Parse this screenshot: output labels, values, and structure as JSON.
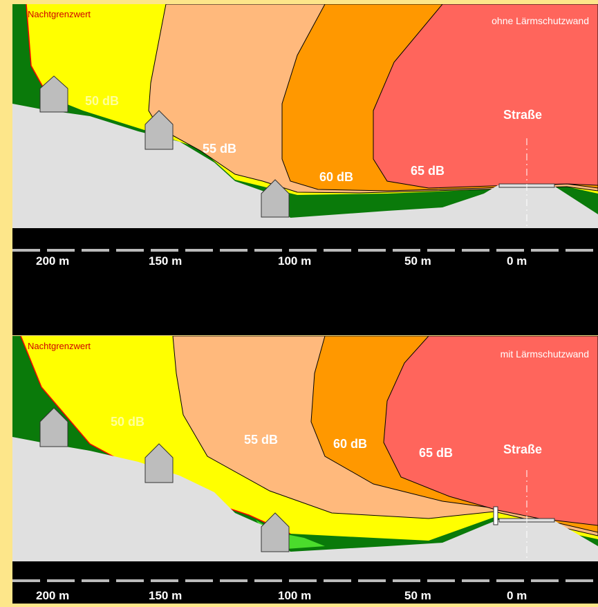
{
  "colors": {
    "background": "#fde68a",
    "ground": "#e0e0e0",
    "band_green": "#0a7a0a",
    "band_lightgreen": "#4bdc2c",
    "band_50": "#ffff00",
    "band_55": "#ffb97c",
    "band_60": "#ff9800",
    "band_65": "#ff655c",
    "night_limit_line": "#ff0000",
    "scale_bar": "#000000"
  },
  "legend": {
    "night_limit": "Nachtgrenzwert"
  },
  "panels": [
    {
      "id": "top",
      "title": "ohne Lärmschutzwand",
      "labels": {
        "db50": "50 dB",
        "db55": "55 dB",
        "db60": "60 dB",
        "db65": "65 dB",
        "road": "Straße"
      }
    },
    {
      "id": "bottom",
      "title": "mit Lärmschutzwand",
      "labels": {
        "db50": "50 dB",
        "db55": "55 dB",
        "db60": "60 dB",
        "db65": "65 dB",
        "road": "Straße"
      }
    }
  ],
  "scale": {
    "ticks": [
      "200 m",
      "150 m",
      "100 m",
      "50 m",
      "0 m"
    ]
  },
  "houses_per_panel": 3
}
